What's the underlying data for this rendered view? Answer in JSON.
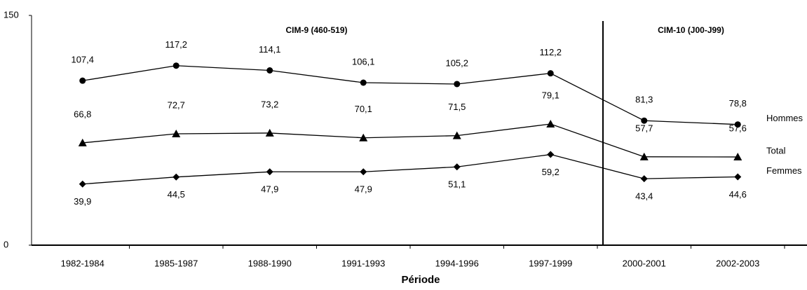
{
  "chart_data": {
    "type": "line",
    "x_label": "Période",
    "categories": [
      "1982-1984",
      "1985-1987",
      "1988-1990",
      "1991-1993",
      "1994-1996",
      "1997-1999",
      "2000-2001",
      "2002-2003"
    ],
    "series": [
      {
        "name": "Hommes",
        "color": "#000000",
        "marker": "circle",
        "values": [
          107.4,
          117.2,
          114.1,
          106.1,
          105.2,
          112.2,
          81.3,
          78.8
        ],
        "value_labels": [
          "107,4",
          "117,2",
          "114,1",
          "106,1",
          "105,2",
          "112,2",
          "81,3",
          "78,8"
        ]
      },
      {
        "name": "Total",
        "color": "#000000",
        "marker": "triangle",
        "values": [
          66.8,
          72.7,
          73.2,
          70.1,
          71.5,
          79.1,
          57.7,
          57.6
        ],
        "value_labels": [
          "66,8",
          "72,7",
          "73,2",
          "70,1",
          "71,5",
          "79,1",
          "57,7",
          "57,6"
        ]
      },
      {
        "name": "Femmes",
        "color": "#000000",
        "marker": "diamond",
        "values": [
          39.9,
          44.5,
          47.9,
          47.9,
          51.1,
          59.2,
          43.4,
          44.6
        ],
        "value_labels": [
          "39,9",
          "44,5",
          "47,9",
          "47,9",
          "51,1",
          "59,2",
          "43,4",
          "44,6"
        ]
      }
    ],
    "segments": [
      [
        0,
        5
      ],
      [
        6,
        7
      ]
    ],
    "annotations": [
      "CIM-9 (460-519)",
      "CIM-10 (J00-J99)"
    ],
    "ylim": [
      0,
      150
    ],
    "yticks": [
      0,
      150
    ],
    "grid": false
  }
}
